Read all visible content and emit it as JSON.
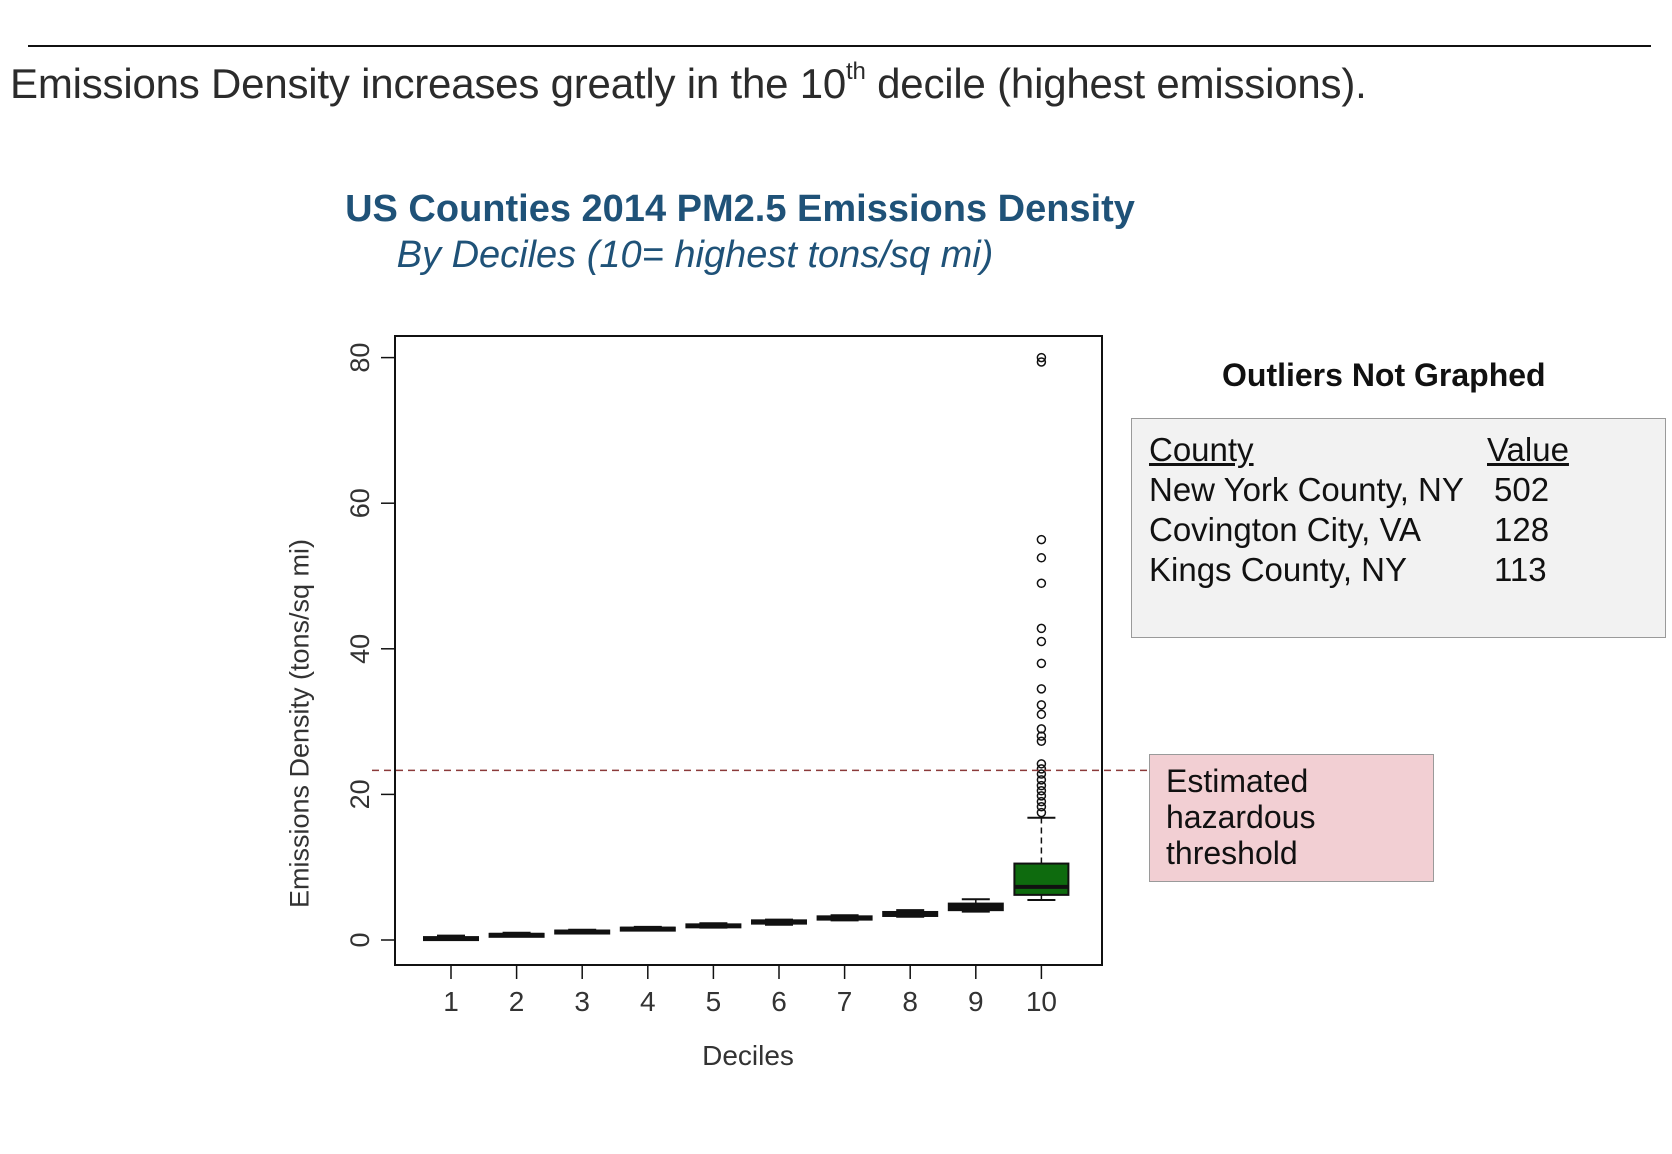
{
  "slide": {
    "headline_pre": "Emissions Density increases greatly in the 10",
    "headline_sup": "th",
    "headline_post": " decile (highest emissions)."
  },
  "chart_data": {
    "type": "box",
    "title": "US Counties 2014 PM2.5 Emissions Density",
    "subtitle": "By Deciles (10= highest tons/sq mi)",
    "xlabel": "Deciles",
    "ylabel": "Emissions Density (tons/sq mi)",
    "ylim": [
      -3,
      83
    ],
    "yticks": [
      "0",
      "20",
      "40",
      "60",
      "80"
    ],
    "categories": [
      "1",
      "2",
      "3",
      "4",
      "5",
      "6",
      "7",
      "8",
      "9",
      "10"
    ],
    "boxes": [
      {
        "category": "1",
        "q1": 0.1,
        "median": 0.2,
        "q3": 0.4,
        "whisker_low": 0.0,
        "whisker_high": 0.6
      },
      {
        "category": "2",
        "q1": 0.6,
        "median": 0.7,
        "q3": 0.85,
        "whisker_low": 0.5,
        "whisker_high": 1.0
      },
      {
        "category": "3",
        "q1": 1.0,
        "median": 1.15,
        "q3": 1.3,
        "whisker_low": 0.9,
        "whisker_high": 1.4
      },
      {
        "category": "4",
        "q1": 1.4,
        "median": 1.55,
        "q3": 1.7,
        "whisker_low": 1.3,
        "whisker_high": 1.8
      },
      {
        "category": "5",
        "q1": 1.8,
        "median": 1.95,
        "q3": 2.15,
        "whisker_low": 1.7,
        "whisker_high": 2.3
      },
      {
        "category": "6",
        "q1": 2.25,
        "median": 2.45,
        "q3": 2.7,
        "whisker_low": 2.1,
        "whisker_high": 2.8
      },
      {
        "category": "7",
        "q1": 2.8,
        "median": 3.0,
        "q3": 3.25,
        "whisker_low": 2.7,
        "whisker_high": 3.4
      },
      {
        "category": "8",
        "q1": 3.3,
        "median": 3.55,
        "q3": 3.85,
        "whisker_low": 3.2,
        "whisker_high": 4.1
      },
      {
        "category": "9",
        "q1": 4.1,
        "median": 4.55,
        "q3": 5.0,
        "whisker_low": 3.9,
        "whisker_high": 5.6
      },
      {
        "category": "10",
        "q1": 6.2,
        "median": 7.3,
        "q3": 10.5,
        "whisker_low": 5.5,
        "whisker_high": 16.8
      }
    ],
    "outliers": [
      {
        "category": "10",
        "values": [
          17.5,
          18.3,
          19.0,
          19.8,
          20.5,
          21.2,
          22.0,
          22.8,
          23.5,
          24.2,
          27.3,
          28.0,
          29.0,
          31.0,
          32.3,
          34.5,
          38.0,
          41.0,
          42.8,
          49.0,
          52.5,
          55.0,
          79.4,
          80.0
        ]
      }
    ],
    "threshold": {
      "value": 23.3,
      "label_lines": [
        "Estimated",
        "hazardous",
        "threshold"
      ]
    },
    "box_colors": {
      "default": "#111111",
      "highlight": "#0e6b0e"
    },
    "threshold_color": "#8b3a3a"
  },
  "outliers_table": {
    "title": "Outliers Not Graphed",
    "headers": {
      "county": "County",
      "value": "Value"
    },
    "rows": [
      {
        "county": "New York County, NY",
        "value": "502"
      },
      {
        "county": "Covington City, VA",
        "value": "128"
      },
      {
        "county": "Kings County, NY",
        "value": "113"
      }
    ]
  }
}
